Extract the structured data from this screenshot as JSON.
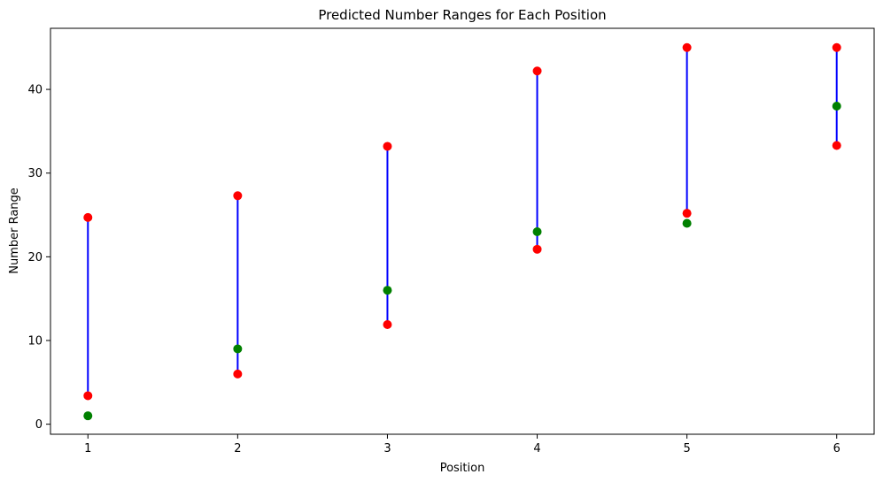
{
  "chart_data": {
    "type": "scatter",
    "title": "Predicted Number Ranges for Each Position",
    "xlabel": "Position",
    "ylabel": "Number Range",
    "x": [
      1,
      2,
      3,
      4,
      5,
      6
    ],
    "xticks": [
      "1",
      "2",
      "3",
      "4",
      "5",
      "6"
    ],
    "yticks": [
      "0",
      "10",
      "20",
      "30",
      "40"
    ],
    "xlim": [
      0.75,
      6.25
    ],
    "ylim": [
      -1.2,
      47.3
    ],
    "grid": false,
    "series": [
      {
        "role": "range-low",
        "color": "#ff0000",
        "values": [
          3.4,
          6.0,
          11.9,
          20.9,
          25.2,
          33.3
        ]
      },
      {
        "role": "range-high",
        "color": "#ff0000",
        "values": [
          24.7,
          27.3,
          33.2,
          42.2,
          45.0,
          45.0
        ]
      },
      {
        "role": "actual",
        "color": "#008000",
        "values": [
          1,
          9,
          16,
          23,
          24,
          38
        ]
      }
    ],
    "range_line_color": "#0000ff"
  }
}
